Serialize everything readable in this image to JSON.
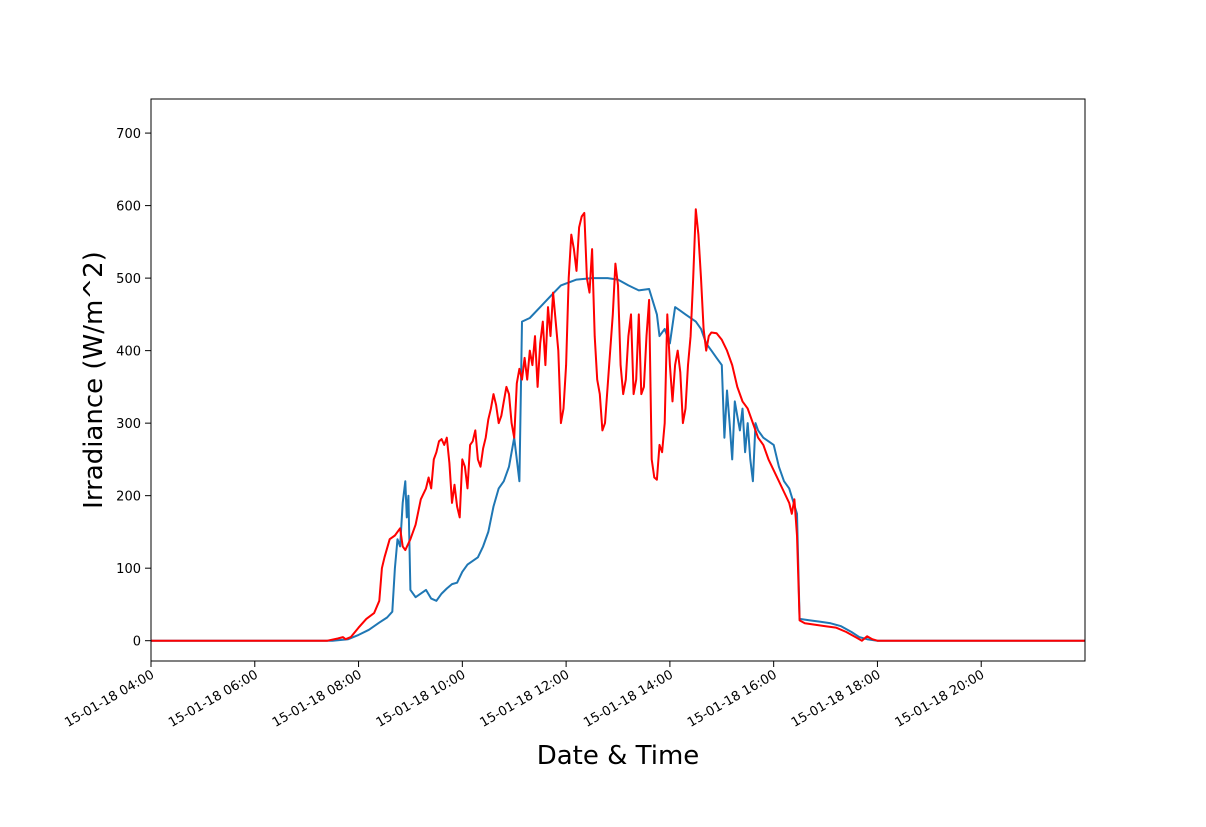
{
  "chart_data": {
    "type": "line",
    "xlabel": "Date & Time",
    "ylabel": "Irradiance (W/m^2)",
    "x_unit": "hours",
    "xlim": [
      4.0,
      22.0
    ],
    "ylim": [
      -28,
      747
    ],
    "x_ticks": [
      {
        "value": 4,
        "label": "15-01-18 04:00"
      },
      {
        "value": 6,
        "label": "15-01-18 06:00"
      },
      {
        "value": 8,
        "label": "15-01-18 08:00"
      },
      {
        "value": 10,
        "label": "15-01-18 10:00"
      },
      {
        "value": 12,
        "label": "15-01-18 12:00"
      },
      {
        "value": 14,
        "label": "15-01-18 14:00"
      },
      {
        "value": 16,
        "label": "15-01-18 16:00"
      },
      {
        "value": 18,
        "label": "15-01-18 18:00"
      },
      {
        "value": 20,
        "label": "15-01-18 20:00"
      }
    ],
    "y_ticks": [
      0,
      100,
      200,
      300,
      400,
      500,
      600,
      700
    ],
    "grid": false,
    "series": [
      {
        "color": "#1f77b4",
        "points": [
          [
            4.0,
            0
          ],
          [
            7.5,
            0
          ],
          [
            7.8,
            2
          ],
          [
            8.0,
            8
          ],
          [
            8.2,
            15
          ],
          [
            8.4,
            25
          ],
          [
            8.55,
            32
          ],
          [
            8.65,
            40
          ],
          [
            8.7,
            100
          ],
          [
            8.75,
            140
          ],
          [
            8.8,
            130
          ],
          [
            8.85,
            190
          ],
          [
            8.9,
            220
          ],
          [
            8.93,
            170
          ],
          [
            8.96,
            200
          ],
          [
            9.0,
            70
          ],
          [
            9.1,
            60
          ],
          [
            9.2,
            65
          ],
          [
            9.3,
            70
          ],
          [
            9.4,
            58
          ],
          [
            9.5,
            55
          ],
          [
            9.6,
            65
          ],
          [
            9.7,
            72
          ],
          [
            9.8,
            78
          ],
          [
            9.9,
            80
          ],
          [
            10.0,
            95
          ],
          [
            10.1,
            105
          ],
          [
            10.2,
            110
          ],
          [
            10.3,
            115
          ],
          [
            10.4,
            130
          ],
          [
            10.5,
            150
          ],
          [
            10.6,
            185
          ],
          [
            10.7,
            210
          ],
          [
            10.8,
            220
          ],
          [
            10.9,
            240
          ],
          [
            11.0,
            280
          ],
          [
            11.05,
            250
          ],
          [
            11.1,
            220
          ],
          [
            11.15,
            440
          ],
          [
            11.3,
            445
          ],
          [
            11.5,
            460
          ],
          [
            11.7,
            475
          ],
          [
            11.9,
            490
          ],
          [
            12.2,
            498
          ],
          [
            12.5,
            500
          ],
          [
            12.8,
            500
          ],
          [
            13.0,
            498
          ],
          [
            13.2,
            490
          ],
          [
            13.4,
            483
          ],
          [
            13.6,
            485
          ],
          [
            13.75,
            450
          ],
          [
            13.8,
            420
          ],
          [
            13.9,
            430
          ],
          [
            14.0,
            410
          ],
          [
            14.1,
            460
          ],
          [
            14.2,
            455
          ],
          [
            14.3,
            450
          ],
          [
            14.5,
            440
          ],
          [
            14.6,
            430
          ],
          [
            14.7,
            410
          ],
          [
            14.8,
            400
          ],
          [
            14.9,
            390
          ],
          [
            15.0,
            380
          ],
          [
            15.05,
            280
          ],
          [
            15.1,
            345
          ],
          [
            15.15,
            300
          ],
          [
            15.2,
            250
          ],
          [
            15.25,
            330
          ],
          [
            15.3,
            310
          ],
          [
            15.35,
            290
          ],
          [
            15.4,
            320
          ],
          [
            15.45,
            260
          ],
          [
            15.5,
            300
          ],
          [
            15.55,
            250
          ],
          [
            15.6,
            220
          ],
          [
            15.65,
            300
          ],
          [
            15.7,
            290
          ],
          [
            15.8,
            280
          ],
          [
            15.9,
            275
          ],
          [
            16.0,
            270
          ],
          [
            16.1,
            240
          ],
          [
            16.2,
            220
          ],
          [
            16.3,
            210
          ],
          [
            16.45,
            175
          ],
          [
            16.5,
            30
          ],
          [
            16.7,
            28
          ],
          [
            16.9,
            26
          ],
          [
            17.1,
            24
          ],
          [
            17.3,
            20
          ],
          [
            17.5,
            12
          ],
          [
            17.65,
            5
          ],
          [
            17.8,
            2
          ],
          [
            18.0,
            0
          ],
          [
            22.0,
            0
          ]
        ]
      },
      {
        "color": "#ff0000",
        "points": [
          [
            4.0,
            0
          ],
          [
            7.4,
            0
          ],
          [
            7.6,
            3
          ],
          [
            7.7,
            5
          ],
          [
            7.75,
            2
          ],
          [
            7.85,
            5
          ],
          [
            8.0,
            18
          ],
          [
            8.15,
            30
          ],
          [
            8.3,
            38
          ],
          [
            8.4,
            55
          ],
          [
            8.45,
            100
          ],
          [
            8.5,
            115
          ],
          [
            8.6,
            140
          ],
          [
            8.7,
            145
          ],
          [
            8.8,
            155
          ],
          [
            8.85,
            130
          ],
          [
            8.9,
            125
          ],
          [
            9.0,
            140
          ],
          [
            9.1,
            160
          ],
          [
            9.2,
            195
          ],
          [
            9.3,
            210
          ],
          [
            9.35,
            225
          ],
          [
            9.4,
            210
          ],
          [
            9.45,
            250
          ],
          [
            9.5,
            260
          ],
          [
            9.55,
            275
          ],
          [
            9.6,
            278
          ],
          [
            9.65,
            270
          ],
          [
            9.7,
            280
          ],
          [
            9.75,
            245
          ],
          [
            9.8,
            190
          ],
          [
            9.85,
            215
          ],
          [
            9.9,
            185
          ],
          [
            9.95,
            170
          ],
          [
            10.0,
            250
          ],
          [
            10.05,
            240
          ],
          [
            10.1,
            210
          ],
          [
            10.15,
            270
          ],
          [
            10.2,
            275
          ],
          [
            10.25,
            290
          ],
          [
            10.3,
            250
          ],
          [
            10.35,
            240
          ],
          [
            10.4,
            265
          ],
          [
            10.45,
            280
          ],
          [
            10.5,
            305
          ],
          [
            10.55,
            320
          ],
          [
            10.6,
            340
          ],
          [
            10.65,
            325
          ],
          [
            10.7,
            300
          ],
          [
            10.75,
            310
          ],
          [
            10.8,
            330
          ],
          [
            10.85,
            350
          ],
          [
            10.9,
            340
          ],
          [
            10.95,
            300
          ],
          [
            11.0,
            280
          ],
          [
            11.05,
            355
          ],
          [
            11.1,
            375
          ],
          [
            11.15,
            360
          ],
          [
            11.2,
            390
          ],
          [
            11.25,
            360
          ],
          [
            11.3,
            400
          ],
          [
            11.35,
            380
          ],
          [
            11.4,
            420
          ],
          [
            11.45,
            350
          ],
          [
            11.5,
            410
          ],
          [
            11.55,
            440
          ],
          [
            11.6,
            380
          ],
          [
            11.65,
            460
          ],
          [
            11.7,
            420
          ],
          [
            11.75,
            480
          ],
          [
            11.8,
            440
          ],
          [
            11.85,
            400
          ],
          [
            11.9,
            300
          ],
          [
            11.95,
            320
          ],
          [
            12.0,
            380
          ],
          [
            12.05,
            500
          ],
          [
            12.1,
            560
          ],
          [
            12.15,
            540
          ],
          [
            12.2,
            510
          ],
          [
            12.25,
            570
          ],
          [
            12.3,
            585
          ],
          [
            12.35,
            590
          ],
          [
            12.4,
            500
          ],
          [
            12.45,
            480
          ],
          [
            12.5,
            540
          ],
          [
            12.55,
            420
          ],
          [
            12.6,
            360
          ],
          [
            12.65,
            340
          ],
          [
            12.7,
            290
          ],
          [
            12.75,
            300
          ],
          [
            12.8,
            350
          ],
          [
            12.85,
            400
          ],
          [
            12.9,
            450
          ],
          [
            12.95,
            520
          ],
          [
            13.0,
            490
          ],
          [
            13.05,
            380
          ],
          [
            13.1,
            340
          ],
          [
            13.15,
            360
          ],
          [
            13.2,
            420
          ],
          [
            13.25,
            450
          ],
          [
            13.3,
            340
          ],
          [
            13.35,
            360
          ],
          [
            13.4,
            450
          ],
          [
            13.45,
            340
          ],
          [
            13.5,
            350
          ],
          [
            13.55,
            420
          ],
          [
            13.6,
            470
          ],
          [
            13.65,
            250
          ],
          [
            13.7,
            225
          ],
          [
            13.75,
            222
          ],
          [
            13.8,
            270
          ],
          [
            13.85,
            260
          ],
          [
            13.9,
            300
          ],
          [
            13.95,
            450
          ],
          [
            14.0,
            380
          ],
          [
            14.05,
            330
          ],
          [
            14.1,
            380
          ],
          [
            14.15,
            400
          ],
          [
            14.2,
            370
          ],
          [
            14.25,
            300
          ],
          [
            14.3,
            320
          ],
          [
            14.35,
            380
          ],
          [
            14.4,
            420
          ],
          [
            14.45,
            500
          ],
          [
            14.5,
            595
          ],
          [
            14.55,
            560
          ],
          [
            14.6,
            500
          ],
          [
            14.65,
            430
          ],
          [
            14.7,
            400
          ],
          [
            14.75,
            420
          ],
          [
            14.8,
            425
          ],
          [
            14.9,
            424
          ],
          [
            15.0,
            415
          ],
          [
            15.1,
            400
          ],
          [
            15.2,
            380
          ],
          [
            15.3,
            350
          ],
          [
            15.4,
            330
          ],
          [
            15.5,
            320
          ],
          [
            15.6,
            300
          ],
          [
            15.7,
            280
          ],
          [
            15.8,
            270
          ],
          [
            15.9,
            250
          ],
          [
            16.0,
            235
          ],
          [
            16.1,
            220
          ],
          [
            16.2,
            205
          ],
          [
            16.3,
            190
          ],
          [
            16.35,
            175
          ],
          [
            16.4,
            195
          ],
          [
            16.45,
            145
          ],
          [
            16.5,
            28
          ],
          [
            16.6,
            24
          ],
          [
            16.8,
            22
          ],
          [
            17.0,
            20
          ],
          [
            17.2,
            18
          ],
          [
            17.4,
            12
          ],
          [
            17.6,
            4
          ],
          [
            17.7,
            0
          ],
          [
            17.8,
            6
          ],
          [
            17.9,
            2
          ],
          [
            18.0,
            0
          ],
          [
            22.0,
            0
          ]
        ]
      }
    ]
  }
}
